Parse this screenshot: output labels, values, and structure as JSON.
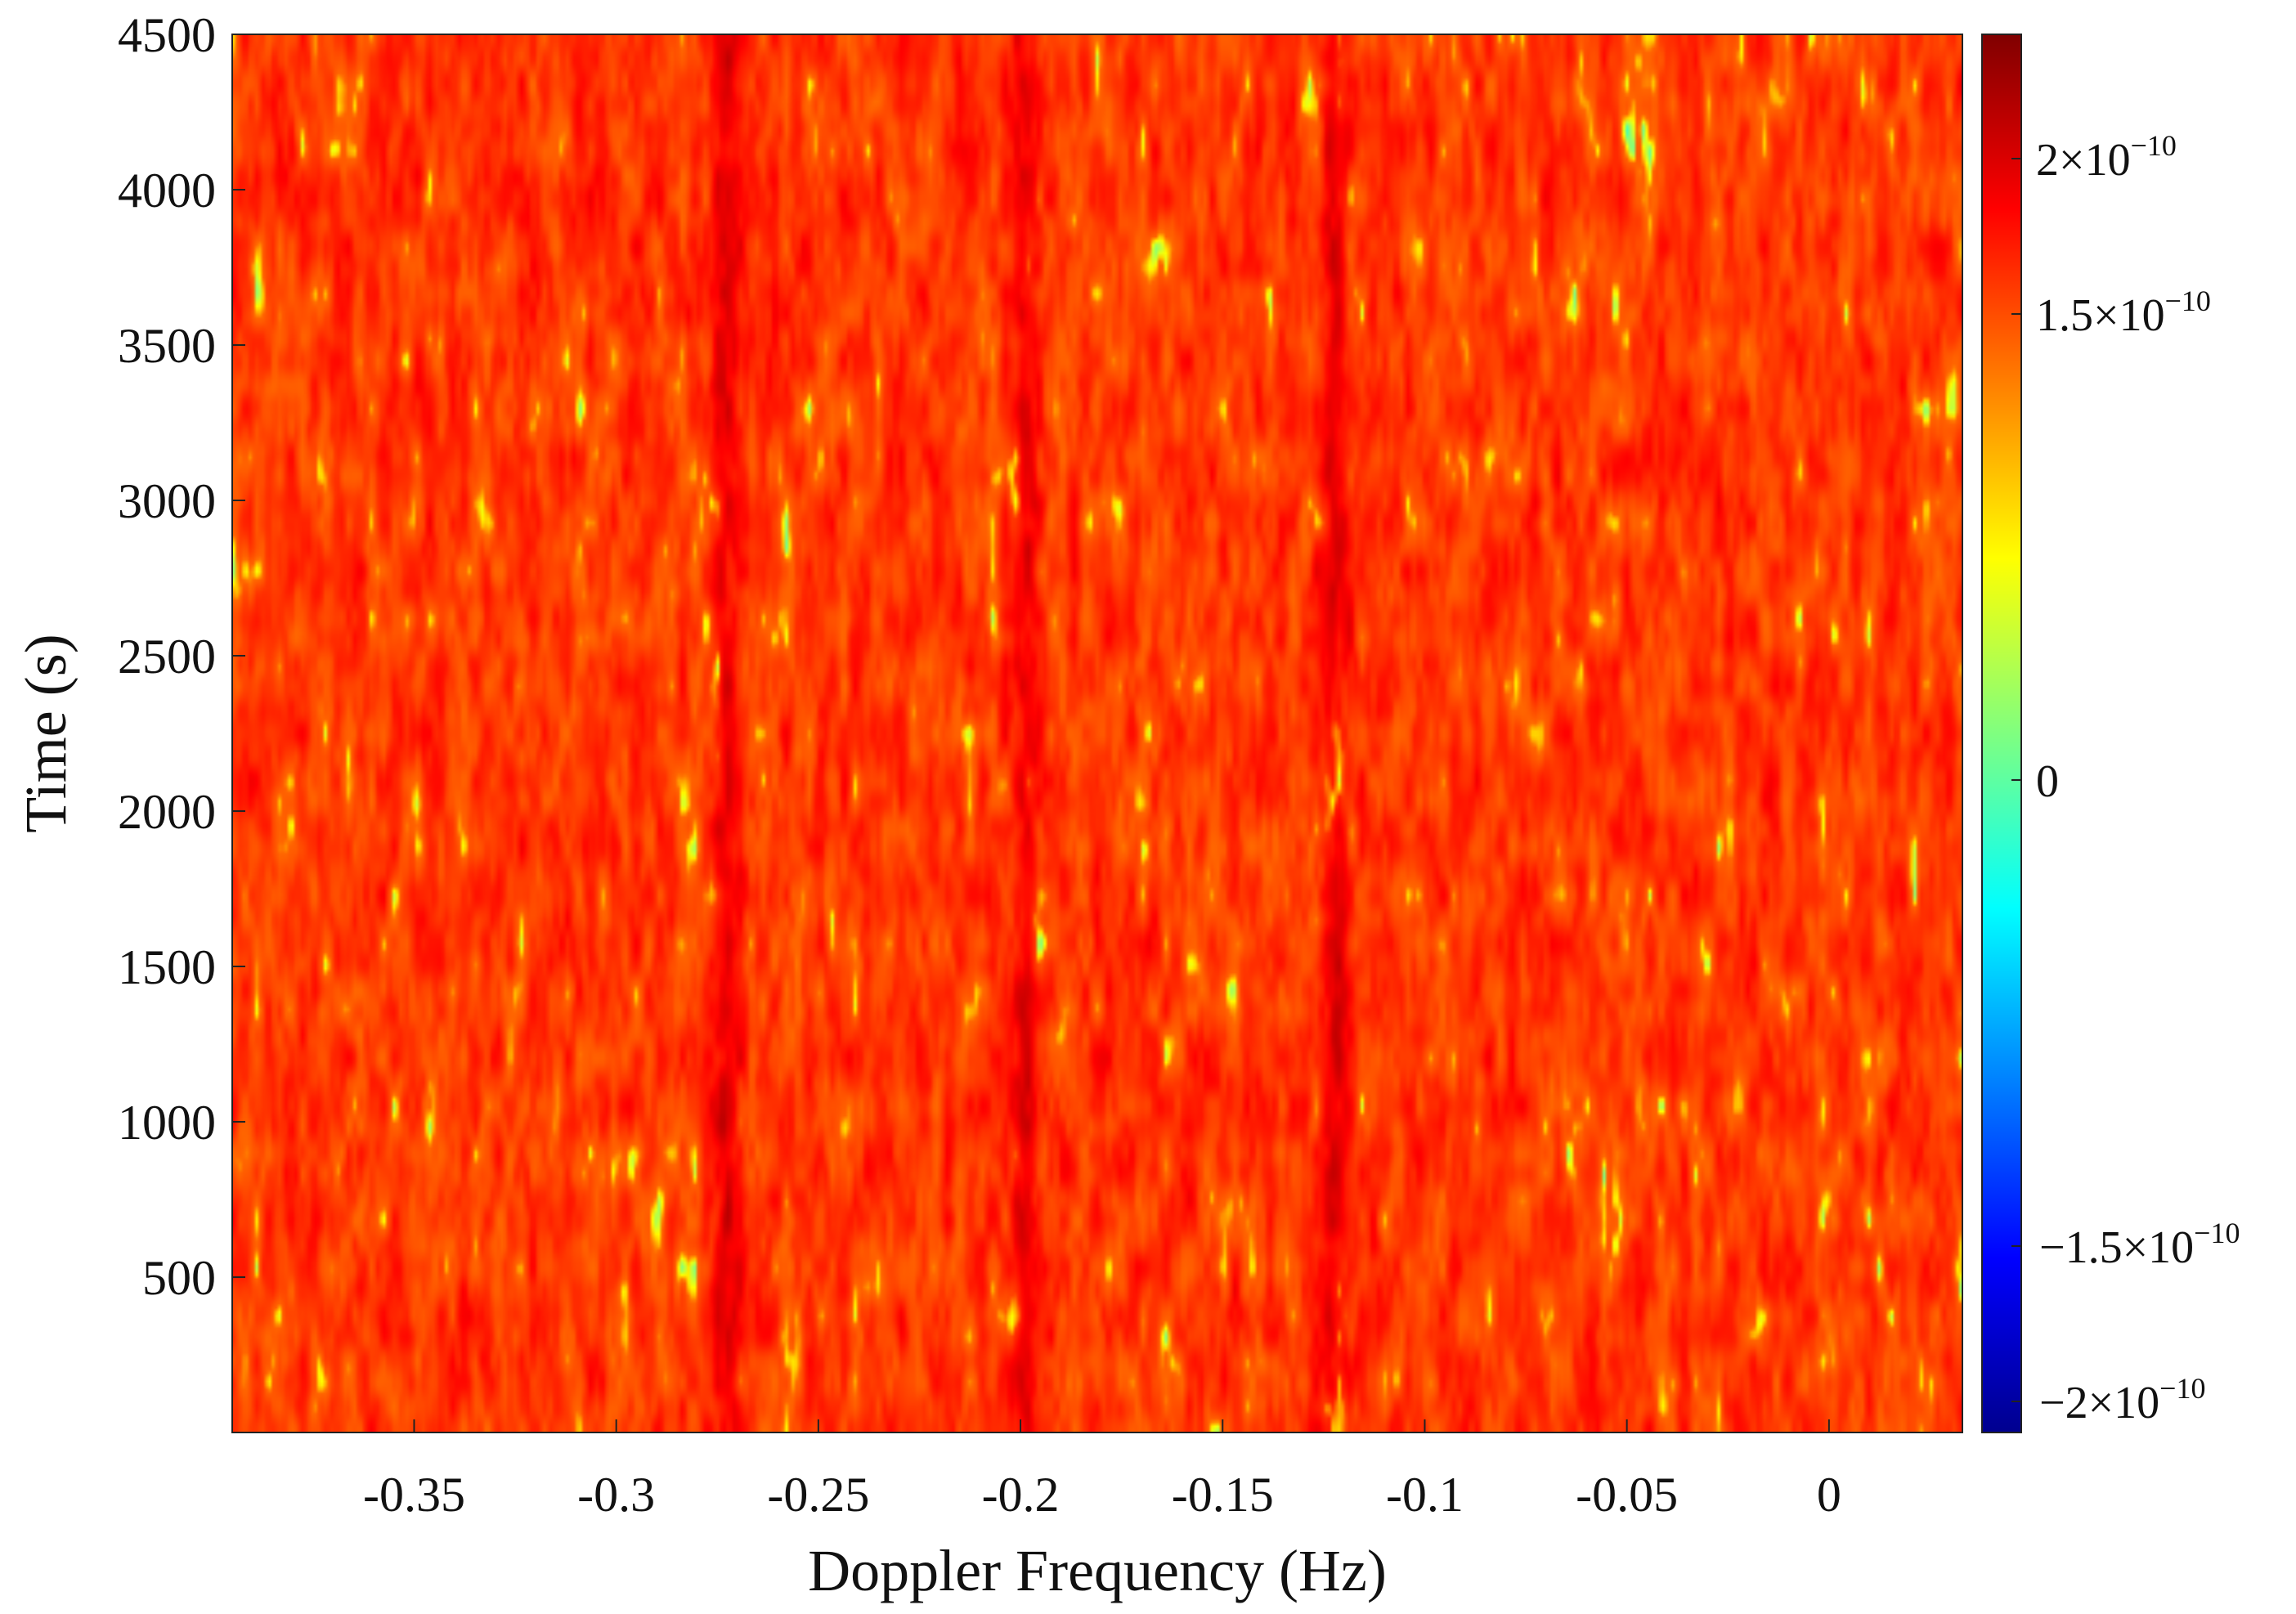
{
  "chart_data": {
    "type": "heatmap",
    "title": "",
    "xlabel": "Doppler Frequency (Hz)",
    "ylabel": "Time (s)",
    "xlim": [
      -0.395,
      0.033
    ],
    "ylim": [
      0,
      4500
    ],
    "x_ticks": [
      {
        "value": -0.35,
        "label": "-0.35"
      },
      {
        "value": -0.3,
        "label": "-0.3"
      },
      {
        "value": -0.25,
        "label": "-0.25"
      },
      {
        "value": -0.2,
        "label": "-0.2"
      },
      {
        "value": -0.15,
        "label": "-0.15"
      },
      {
        "value": -0.1,
        "label": "-0.1"
      },
      {
        "value": -0.05,
        "label": "-0.05"
      },
      {
        "value": 0,
        "label": "0"
      }
    ],
    "y_ticks": [
      {
        "value": 500,
        "label": "500"
      },
      {
        "value": 1000,
        "label": "1000"
      },
      {
        "value": 1500,
        "label": "1500"
      },
      {
        "value": 2000,
        "label": "2000"
      },
      {
        "value": 2500,
        "label": "2500"
      },
      {
        "value": 3000,
        "label": "3000"
      },
      {
        "value": 3500,
        "label": "3500"
      },
      {
        "value": 4000,
        "label": "4000"
      },
      {
        "value": 4500,
        "label": "4500"
      }
    ],
    "colorbar": {
      "colormap": "jet",
      "range": [
        -2.1e-10,
        2.4e-10
      ],
      "ticks": [
        {
          "value": 2e-10,
          "mantissa": "2×10",
          "exp": "−10"
        },
        {
          "value": 1.5e-10,
          "mantissa": "1.5×10",
          "exp": "−10"
        },
        {
          "value": 0,
          "mantissa": "0",
          "exp": ""
        },
        {
          "value": -1.5e-10,
          "mantissa": "−1.5×10",
          "exp": "−10"
        },
        {
          "value": -2e-10,
          "mantissa": "−2×10",
          "exp": "−10"
        }
      ]
    },
    "dominant_lines_hz": [
      -0.273,
      -0.199,
      -0.122
    ],
    "value_description": "Values mostly between 1.5e-10 and 2e-10 with sparse dips toward 0; strong vertical ridges near -0.273, -0.199 and -0.122 Hz"
  }
}
